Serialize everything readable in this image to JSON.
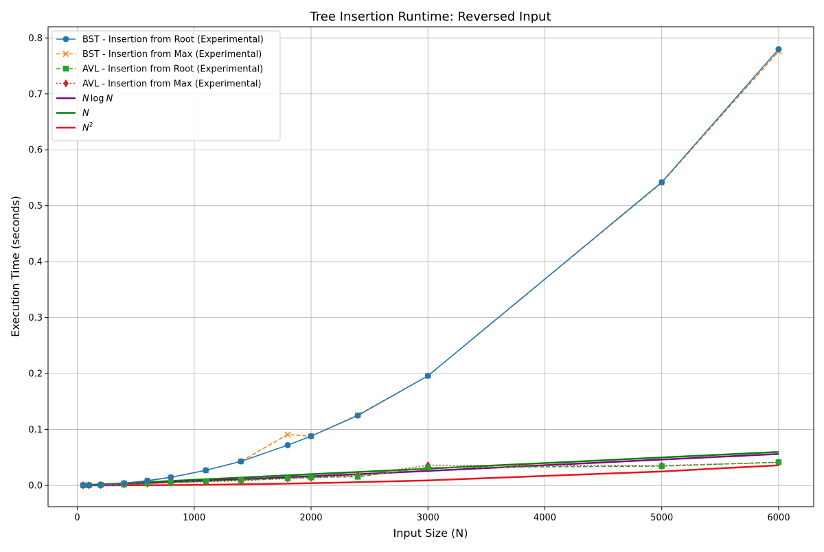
{
  "chart_data": {
    "type": "line",
    "title": "Tree Insertion Runtime: Reversed Input",
    "xlabel": "Input Size (N)",
    "ylabel": "Execution Time (seconds)",
    "xlim": [
      -250,
      6300
    ],
    "ylim": [
      -0.038,
      0.82
    ],
    "xticks": [
      0,
      1000,
      2000,
      3000,
      4000,
      5000,
      6000
    ],
    "yticks": [
      0.0,
      0.1,
      0.2,
      0.3,
      0.4,
      0.5,
      0.6,
      0.7,
      0.8
    ],
    "xtick_labels": [
      "0",
      "1000",
      "2000",
      "3000",
      "4000",
      "5000",
      "6000"
    ],
    "ytick_labels": [
      "0.0",
      "0.1",
      "0.2",
      "0.3",
      "0.4",
      "0.5",
      "0.6",
      "0.7",
      "0.8"
    ],
    "grid": true,
    "legend_position": "top-left",
    "series": [
      {
        "name": "BST - Insertion from Root (Experimental)",
        "color": "#1f77b4",
        "dash": "solid",
        "marker": "circle",
        "x": [
          50,
          100,
          200,
          400,
          600,
          800,
          1100,
          1400,
          1800,
          2000,
          2400,
          3000,
          5000,
          6000
        ],
        "y": [
          0.0003,
          0.0005,
          0.0012,
          0.004,
          0.0085,
          0.0145,
          0.027,
          0.043,
          0.072,
          0.088,
          0.125,
          0.196,
          0.542,
          0.78
        ]
      },
      {
        "name": "BST - Insertion from Max (Experimental)",
        "color": "#ff7f0e",
        "dash": "dashed",
        "marker": "x",
        "x": [
          50,
          100,
          200,
          400,
          600,
          800,
          1100,
          1400,
          1800,
          2000,
          2400,
          3000,
          5000,
          6000
        ],
        "y": [
          0.0003,
          0.0005,
          0.0012,
          0.004,
          0.0085,
          0.014,
          0.027,
          0.043,
          0.091,
          0.088,
          0.126,
          0.196,
          0.541,
          0.776
        ]
      },
      {
        "name": "AVL - Insertion from Root (Experimental)",
        "color": "#2ca02c",
        "dash": "dashed",
        "marker": "square",
        "x": [
          50,
          100,
          200,
          400,
          600,
          800,
          1100,
          1400,
          1800,
          2000,
          2400,
          3000,
          5000,
          6000
        ],
        "y": [
          0.0002,
          0.0003,
          0.0007,
          0.0017,
          0.0035,
          0.005,
          0.0075,
          0.0095,
          0.0125,
          0.0145,
          0.0155,
          0.032,
          0.0345,
          0.0415
        ]
      },
      {
        "name": "AVL - Insertion from Max (Experimental)",
        "color": "#d62728",
        "dash": "dotted",
        "marker": "diamond",
        "x": [
          50,
          100,
          200,
          400,
          600,
          800,
          1100,
          1400,
          1800,
          2000,
          2400,
          3000,
          5000,
          6000
        ],
        "y": [
          0.0002,
          0.0003,
          0.0007,
          0.0017,
          0.0033,
          0.005,
          0.0065,
          0.0085,
          0.0125,
          0.0135,
          0.0175,
          0.036,
          0.0355,
          0.041
        ]
      },
      {
        "name": "N log N",
        "color": "#800080",
        "dash": "solid",
        "marker": "none",
        "x": [
          50,
          100,
          200,
          400,
          600,
          800,
          1100,
          1400,
          1800,
          2000,
          2400,
          3000,
          5000,
          6000
        ],
        "y": [
          0.0002,
          0.0005,
          0.0011,
          0.0026,
          0.0041,
          0.0058,
          0.0083,
          0.0109,
          0.0146,
          0.0164,
          0.0201,
          0.0259,
          0.0462,
          0.0561
        ]
      },
      {
        "name": "N",
        "color": "#008000",
        "dash": "solid",
        "marker": "none",
        "x": [
          50,
          6000
        ],
        "y": [
          0.0005,
          0.06
        ]
      },
      {
        "name": "N²",
        "color": "#e8141b",
        "dash": "solid",
        "marker": "none",
        "x": [
          50,
          100,
          200,
          400,
          600,
          800,
          1100,
          1400,
          1800,
          2000,
          2400,
          3000,
          5000,
          6000
        ],
        "y": [
          0.0,
          0.0,
          0.0,
          0.0002,
          0.0004,
          0.0007,
          0.0012,
          0.002,
          0.0032,
          0.004,
          0.0058,
          0.009,
          0.025,
          0.036
        ]
      }
    ],
    "legend": [
      {
        "label": "BST - Insertion from Root (Experimental)"
      },
      {
        "label": "BST - Insertion from Max (Experimental)"
      },
      {
        "label": "AVL - Insertion from Root (Experimental)"
      },
      {
        "label": "AVL - Insertion from Max (Experimental)"
      },
      {
        "label": "N log N",
        "math_main": "N",
        "math_func": "log",
        "math_tail": "N"
      },
      {
        "label": "N",
        "math_main": "N"
      },
      {
        "label": "N²",
        "math_main": "N",
        "math_sup": "2"
      }
    ]
  }
}
